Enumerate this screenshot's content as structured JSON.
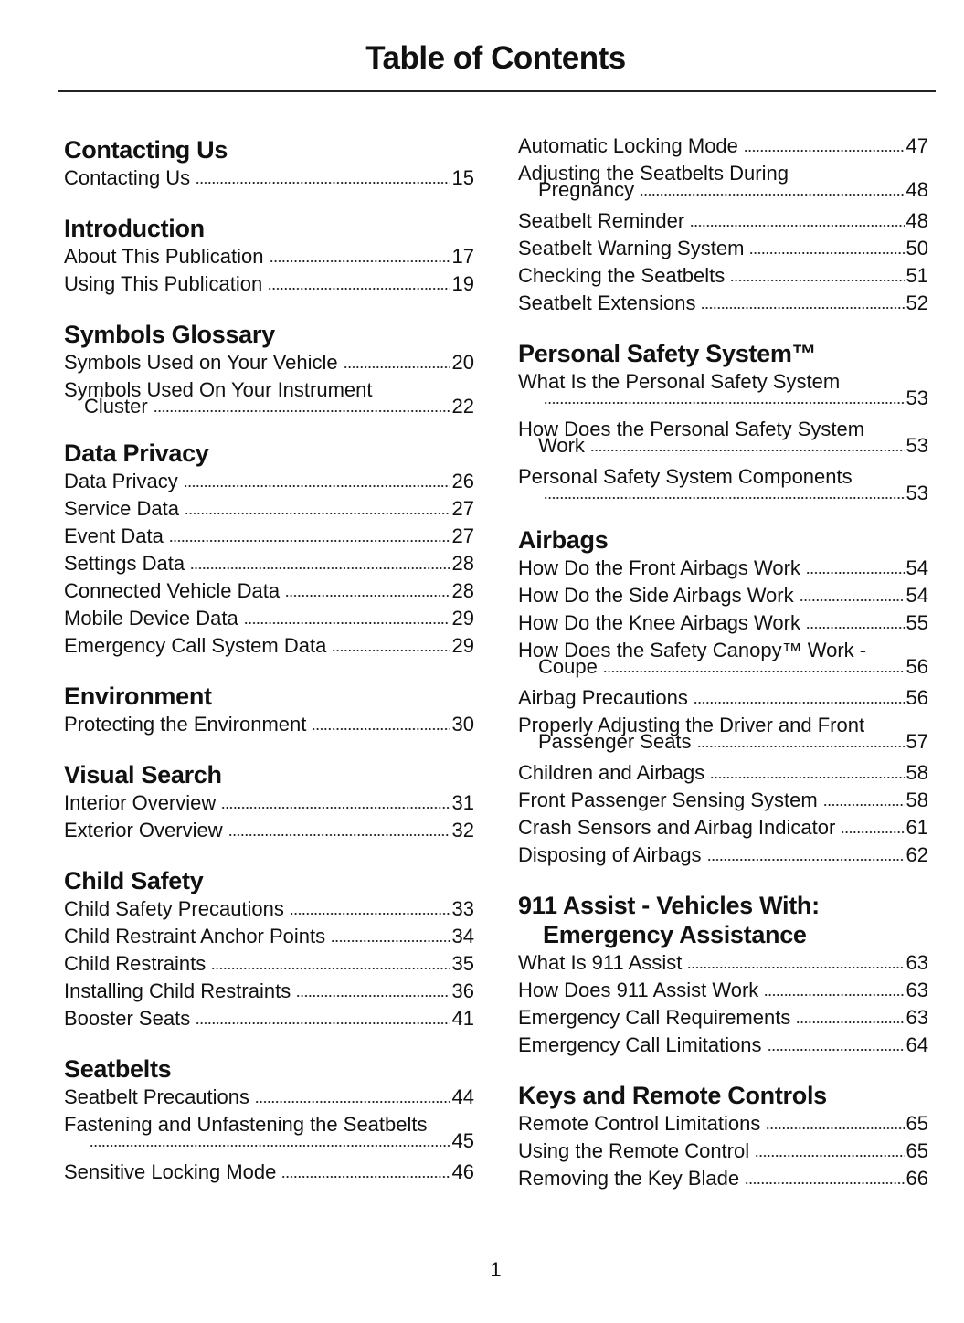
{
  "title": "Table of Contents",
  "page_number": "1",
  "left": [
    {
      "heading": "Contacting Us",
      "entries": [
        {
          "title": "Contacting Us",
          "page": "15"
        }
      ]
    },
    {
      "heading": "Introduction",
      "entries": [
        {
          "title": "About This Publication",
          "page": "17"
        },
        {
          "title": "Using This Publication",
          "page": "19"
        }
      ]
    },
    {
      "heading": "Symbols Glossary",
      "entries": [
        {
          "title": "Symbols Used on Your Vehicle",
          "page": "20"
        },
        {
          "title": "Symbols Used On Your Instrument",
          "title2": "Cluster",
          "page": "22"
        }
      ]
    },
    {
      "heading": "Data Privacy",
      "entries": [
        {
          "title": "Data Privacy",
          "page": "26"
        },
        {
          "title": "Service Data",
          "page": "27"
        },
        {
          "title": "Event Data",
          "page": "27"
        },
        {
          "title": "Settings Data",
          "page": "28"
        },
        {
          "title": "Connected Vehicle Data",
          "page": "28"
        },
        {
          "title": "Mobile Device Data",
          "page": "29"
        },
        {
          "title": "Emergency Call System Data",
          "page": "29"
        }
      ]
    },
    {
      "heading": "Environment",
      "entries": [
        {
          "title": "Protecting the Environment",
          "page": "30"
        }
      ]
    },
    {
      "heading": "Visual Search",
      "entries": [
        {
          "title": "Interior Overview",
          "page": "31"
        },
        {
          "title": "Exterior Overview",
          "page": "32"
        }
      ]
    },
    {
      "heading": "Child Safety",
      "entries": [
        {
          "title": "Child Safety Precautions",
          "page": "33"
        },
        {
          "title": "Child Restraint Anchor Points",
          "page": "34"
        },
        {
          "title": "Child Restraints",
          "page": "35"
        },
        {
          "title": "Installing Child Restraints",
          "page": "36"
        },
        {
          "title": "Booster Seats",
          "page": "41"
        }
      ]
    },
    {
      "heading": "Seatbelts",
      "entries": [
        {
          "title": "Seatbelt Precautions",
          "page": "44"
        },
        {
          "title": "Fastening and Unfastening the Seatbelts",
          "title2": "",
          "page": "45"
        },
        {
          "title": "Sensitive Locking Mode",
          "page": "46"
        }
      ]
    }
  ],
  "right": [
    {
      "heading": "",
      "entries": [
        {
          "title": "Automatic Locking Mode",
          "page": "47"
        },
        {
          "title": "Adjusting the Seatbelts During",
          "title2": "Pregnancy",
          "page": "48"
        },
        {
          "title": "Seatbelt Reminder",
          "page": "48"
        },
        {
          "title": "Seatbelt Warning System",
          "page": "50"
        },
        {
          "title": "Checking the Seatbelts",
          "page": "51"
        },
        {
          "title": "Seatbelt Extensions",
          "page": "52"
        }
      ]
    },
    {
      "heading": "Personal Safety System™",
      "entries": [
        {
          "title": "What Is the Personal Safety System",
          "title2": "",
          "page": "53"
        },
        {
          "title": "How Does the Personal Safety System",
          "title2": "Work",
          "page": "53"
        },
        {
          "title": "Personal Safety System Components",
          "title2": "",
          "page": "53"
        }
      ]
    },
    {
      "heading": "Airbags",
      "entries": [
        {
          "title": "How Do the Front Airbags Work",
          "page": "54"
        },
        {
          "title": "How Do the Side Airbags Work",
          "page": "54"
        },
        {
          "title": "How Do the Knee Airbags Work",
          "page": "55"
        },
        {
          "title": "How Does the Safety Canopy™ Work -",
          "title2": "Coupe",
          "page": "56"
        },
        {
          "title": "Airbag Precautions",
          "page": "56"
        },
        {
          "title": "Properly Adjusting the Driver and Front",
          "title2": "Passenger Seats",
          "page": "57"
        },
        {
          "title": "Children and Airbags",
          "page": "58"
        },
        {
          "title": "Front Passenger Sensing System",
          "page": "58"
        },
        {
          "title": "Crash Sensors and Airbag Indicator",
          "page": "61"
        },
        {
          "title": "Disposing of Airbags",
          "page": "62"
        }
      ]
    },
    {
      "heading": "911 Assist - Vehicles With:",
      "heading2": "Emergency Assistance",
      "entries": [
        {
          "title": "What Is 911 Assist",
          "page": "63"
        },
        {
          "title": "How Does 911 Assist Work",
          "page": "63"
        },
        {
          "title": "Emergency Call Requirements",
          "page": "63"
        },
        {
          "title": "Emergency Call Limitations",
          "page": "64"
        }
      ]
    },
    {
      "heading": "Keys and Remote Controls",
      "entries": [
        {
          "title": "Remote Control Limitations",
          "page": "65"
        },
        {
          "title": "Using the Remote Control",
          "page": "65"
        },
        {
          "title": "Removing the Key Blade",
          "page": "66"
        }
      ]
    }
  ]
}
